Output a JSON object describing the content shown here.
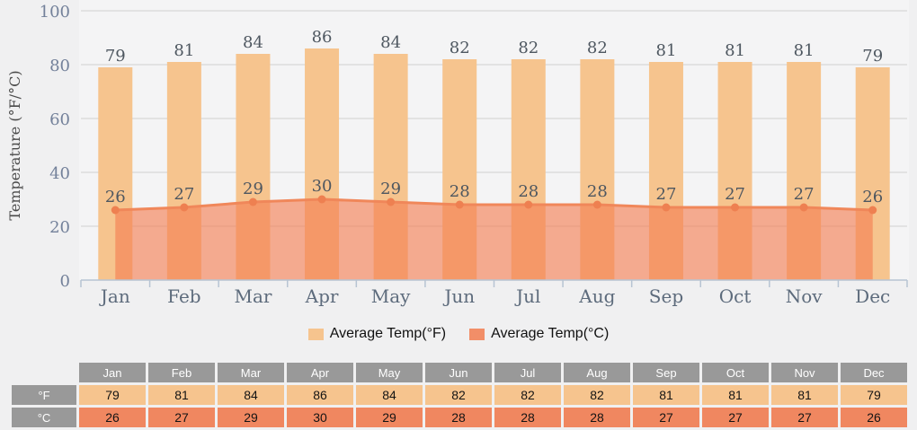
{
  "chart_data": {
    "type": "bar",
    "title": "",
    "ylabel": "Temperature (°F/°C)",
    "categories": [
      "Jan",
      "Feb",
      "Mar",
      "Apr",
      "May",
      "Jun",
      "Jul",
      "Aug",
      "Sep",
      "Oct",
      "Nov",
      "Dec"
    ],
    "series": [
      {
        "name": "Average Temp(°F)",
        "type": "bar",
        "color": "#f6c48e",
        "values": [
          79,
          81,
          84,
          86,
          84,
          82,
          82,
          82,
          81,
          81,
          81,
          79
        ]
      },
      {
        "name": "Average Temp(°C)",
        "type": "area",
        "color": "#f0875a",
        "area_fill": "rgba(244,125,80,0.62)",
        "marker_color": "#ee8051",
        "values": [
          26,
          27,
          29,
          30,
          29,
          28,
          28,
          28,
          27,
          27,
          27,
          26
        ]
      }
    ],
    "ylim": [
      0,
      100
    ],
    "yticks": [
      0,
      20,
      40,
      60,
      80,
      100
    ],
    "grid": true,
    "legend_position": "bottom"
  },
  "legend": {
    "items": [
      {
        "label": "Average Temp(°F)",
        "color": "#f6c48e"
      },
      {
        "label": "Average Temp(°C)",
        "color": "#f28e68"
      }
    ]
  },
  "table": {
    "corner": "",
    "columns": [
      "Jan",
      "Feb",
      "Mar",
      "Apr",
      "May",
      "Jun",
      "Jul",
      "Aug",
      "Sep",
      "Oct",
      "Nov",
      "Dec"
    ],
    "rows": [
      {
        "label": "°F",
        "cell_color": "#f6c48e",
        "values": [
          79,
          81,
          84,
          86,
          84,
          82,
          82,
          82,
          81,
          81,
          81,
          79
        ]
      },
      {
        "label": "°C",
        "cell_color": "#f08760",
        "values": [
          26,
          27,
          29,
          30,
          29,
          28,
          28,
          28,
          27,
          27,
          27,
          26
        ]
      }
    ],
    "header_bg": "#999999"
  },
  "colors": {
    "page_bg": "#f0f0f1",
    "plot_bg": "#f4f4f5",
    "gridline": "#cfcfcf",
    "axis": "#b7c4d3",
    "tick_label": "#73819a",
    "month_label": "#5d6b7c",
    "value_label": "#4e5760",
    "axis_title": "#4a4a4a"
  }
}
